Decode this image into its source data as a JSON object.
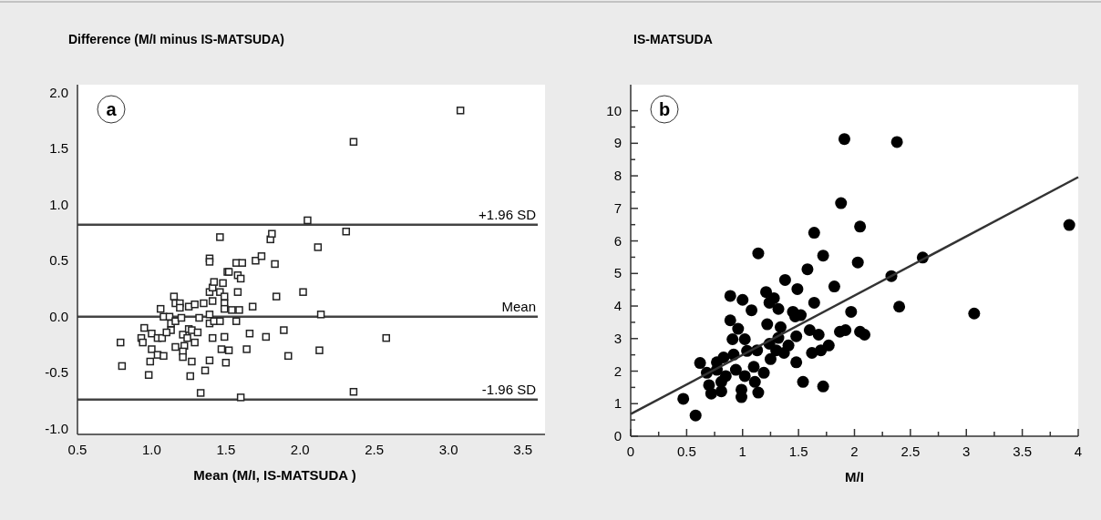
{
  "chart_data": [
    {
      "type": "scatter",
      "ylabel": "Difference (M/I minus IS-MATSUDA)",
      "xlabel": "Mean  (M/I, IS-MATSUDA )",
      "marker": "square",
      "annotations": [
        "a"
      ],
      "xlim": [
        0.5,
        3.65
      ],
      "ylim": [
        -1.05,
        2.07
      ],
      "xticks": [
        {
          "value": 0.5,
          "label": "0.5"
        },
        {
          "value": 1,
          "label": "1.0"
        },
        {
          "value": 1.5,
          "label": "1.5"
        },
        {
          "value": 2,
          "label": "2.0"
        },
        {
          "value": 2.5,
          "label": "2.5"
        },
        {
          "value": 3,
          "label": "3.0"
        },
        {
          "value": 3.5,
          "label": "3.5"
        }
      ],
      "yticks": [
        {
          "value": -1,
          "label": "-1.0"
        },
        {
          "value": -0.5,
          "label": "-0.5"
        },
        {
          "value": 0,
          "label": "0.0"
        },
        {
          "value": 0.5,
          "label": "0.5"
        },
        {
          "value": 1,
          "label": "1.0"
        },
        {
          "value": 1.5,
          "label": "1.5"
        },
        {
          "value": 2,
          "label": "2.0"
        }
      ],
      "ref_lines": [
        {
          "axis": "y",
          "value": 0.82,
          "label": "+1.96 SD",
          "color": "#444444"
        },
        {
          "axis": "y",
          "value": 0,
          "label": "Mean",
          "color": "#444444"
        },
        {
          "axis": "y",
          "value": -0.74,
          "label": "-1.96 SD",
          "color": "#444444"
        }
      ],
      "series": [
        {
          "color": "#222222",
          "x": [
            0.79,
            0.8,
            0.95,
            0.93,
            0.94,
            1.0,
            1.0,
            1.04,
            1.07,
            0.99,
            0.98,
            1.04,
            1.08,
            1.06,
            1.08,
            1.12,
            1.15,
            1.16,
            1.19,
            1.19,
            1.13,
            1.16,
            1.2,
            1.13,
            1.1,
            1.16,
            1.21,
            1.22,
            1.21,
            1.21,
            1.25,
            1.24,
            1.27,
            1.29,
            1.31,
            1.25,
            1.29,
            1.35,
            1.32,
            1.27,
            1.26,
            1.33,
            1.36,
            1.39,
            1.41,
            1.39,
            1.39,
            1.42,
            1.46,
            1.41,
            1.39,
            1.41,
            1.42,
            1.39,
            1.39,
            1.46,
            1.46,
            1.48,
            1.49,
            1.49,
            1.49,
            1.49,
            1.47,
            1.52,
            1.5,
            1.51,
            1.52,
            1.54,
            1.59,
            1.57,
            1.57,
            1.61,
            1.58,
            1.6,
            1.58,
            1.6,
            1.64,
            1.66,
            1.68,
            1.7,
            1.74,
            1.77,
            1.8,
            1.81,
            1.83,
            1.84,
            1.89,
            1.92,
            2.02,
            2.05,
            2.12,
            2.14,
            2.13,
            3.08,
            2.36,
            2.31,
            2.58,
            2.36
          ],
          "values": [
            -0.23,
            -0.44,
            -0.1,
            -0.19,
            -0.23,
            -0.15,
            -0.29,
            -0.19,
            -0.19,
            -0.4,
            -0.52,
            -0.34,
            -0.35,
            0.07,
            0.0,
            0.0,
            0.18,
            0.12,
            0.12,
            0.08,
            -0.06,
            -0.04,
            -0.01,
            -0.12,
            -0.14,
            -0.27,
            -0.16,
            -0.26,
            -0.31,
            -0.36,
            -0.11,
            -0.19,
            -0.12,
            -0.23,
            -0.14,
            0.09,
            0.11,
            0.12,
            -0.01,
            -0.4,
            -0.53,
            -0.68,
            -0.48,
            -0.39,
            -0.19,
            0.02,
            -0.06,
            -0.04,
            -0.04,
            0.14,
            0.22,
            0.26,
            0.31,
            0.52,
            0.49,
            0.71,
            0.22,
            0.3,
            0.18,
            0.12,
            0.07,
            -0.18,
            -0.29,
            -0.3,
            -0.41,
            0.4,
            0.4,
            0.06,
            0.06,
            -0.04,
            0.48,
            0.48,
            0.37,
            0.34,
            0.22,
            -0.72,
            -0.29,
            -0.15,
            0.09,
            0.5,
            0.54,
            -0.18,
            0.69,
            0.74,
            0.47,
            0.18,
            -0.12,
            -0.35,
            0.22,
            0.86,
            0.62,
            0.02,
            -0.3,
            1.84,
            1.56,
            0.76,
            -0.19,
            -0.67
          ]
        }
      ]
    },
    {
      "type": "scatter",
      "ylabel": "IS-MATSUDA",
      "xlabel": "M/I",
      "marker": "circle",
      "annotations": [
        "b"
      ],
      "xlim": [
        0,
        4
      ],
      "ylim": [
        0,
        10.8
      ],
      "xticks": [
        0,
        {
          "value": 0.25,
          "label": null
        },
        0.5,
        {
          "value": 0.75,
          "label": null
        },
        1,
        {
          "value": 1.25,
          "label": null
        },
        1.5,
        {
          "value": 1.75,
          "label": null
        },
        2,
        {
          "value": 2.25,
          "label": null
        },
        2.5,
        {
          "value": 2.75,
          "label": null
        },
        3,
        {
          "value": 3.25,
          "label": null
        },
        3.5,
        {
          "value": 3.75,
          "label": null
        },
        4
      ],
      "yticks": [
        0,
        {
          "value": 0.5,
          "label": null
        },
        1,
        {
          "value": 1.5,
          "label": null
        },
        2,
        {
          "value": 2.5,
          "label": null
        },
        3,
        {
          "value": 3.5,
          "label": null
        },
        4,
        {
          "value": 4.5,
          "label": null
        },
        5,
        {
          "value": 5.5,
          "label": null
        },
        6,
        {
          "value": 6.5,
          "label": null
        },
        7,
        {
          "value": 7.5,
          "label": null
        },
        8,
        {
          "value": 8.5,
          "label": null
        },
        9,
        {
          "value": 9.5,
          "label": null
        },
        10
      ],
      "series": [
        {
          "color": "#000000",
          "x": [
            0.47,
            0.58,
            0.62,
            0.68,
            0.7,
            0.72,
            0.77,
            0.77,
            0.81,
            0.83,
            0.81,
            0.85,
            0.89,
            0.89,
            0.91,
            0.96,
            0.92,
            0.94,
            0.99,
            0.99,
            1.02,
            1.0,
            1.08,
            1.04,
            1.02,
            1.13,
            1.1,
            1.11,
            1.14,
            1.14,
            1.21,
            1.28,
            1.22,
            1.24,
            1.19,
            1.25,
            1.24,
            1.32,
            1.32,
            1.3,
            1.34,
            1.38,
            1.41,
            1.37,
            1.49,
            1.45,
            1.48,
            1.48,
            1.47,
            1.52,
            1.54,
            1.58,
            1.6,
            1.64,
            1.64,
            1.62,
            1.68,
            1.72,
            1.72,
            1.7,
            1.77,
            1.91,
            2.38,
            1.88,
            2.05,
            2.03,
            1.82,
            2.33,
            2.61,
            3.92,
            2.4,
            3.07,
            1.97,
            1.87,
            1.92,
            2.05,
            2.09
          ],
          "values": [
            1.15,
            0.64,
            2.25,
            1.95,
            1.57,
            1.31,
            2.04,
            2.27,
            1.38,
            2.42,
            1.67,
            1.85,
            4.31,
            3.56,
            2.98,
            3.3,
            2.51,
            2.04,
            1.43,
            1.2,
            2.98,
            4.19,
            3.87,
            2.62,
            1.85,
            2.64,
            2.13,
            1.67,
            1.34,
            5.62,
            4.43,
            4.24,
            3.44,
            4.1,
            1.95,
            2.37,
            2.84,
            3.91,
            3.02,
            2.64,
            3.35,
            4.8,
            2.79,
            2.56,
            4.52,
            3.82,
            3.07,
            2.27,
            3.68,
            3.72,
            1.67,
            5.13,
            3.26,
            6.25,
            4.1,
            2.56,
            3.12,
            5.55,
            1.53,
            2.64,
            2.79,
            9.13,
            9.04,
            7.16,
            6.44,
            5.34,
            4.6,
            4.92,
            5.49,
            6.49,
            3.98,
            3.77,
            3.82,
            3.21,
            3.26,
            3.21,
            3.12
          ]
        },
        {
          "type": "line",
          "marker": "none",
          "color": "#333333",
          "x": [
            0,
            4
          ],
          "values": [
            0.68,
            7.96
          ]
        }
      ]
    }
  ]
}
